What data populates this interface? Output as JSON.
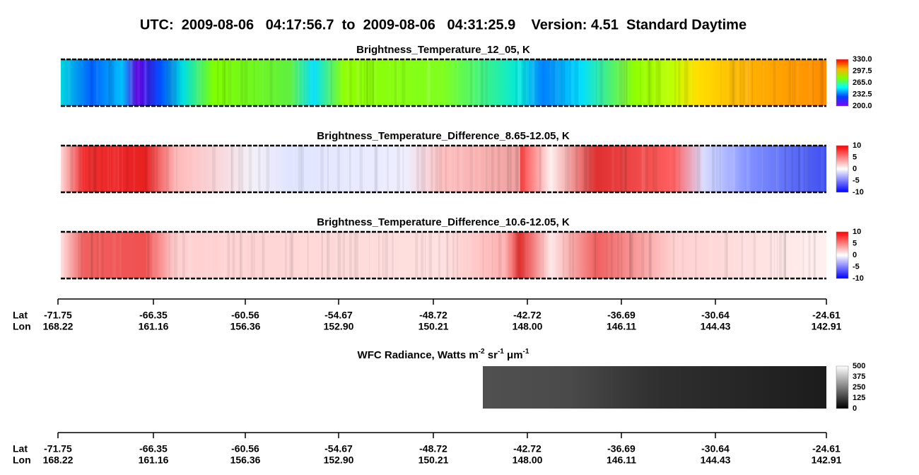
{
  "header": {
    "title": "UTC:  2009-08-06   04:17:56.7  to  2009-08-06   04:31:25.9    Version: 4.51  Standard Daytime"
  },
  "panels": [
    {
      "title": "Brightness_Temperature_12_05, K",
      "colorbar": [
        "330.0",
        "297.5",
        "265.0",
        "232.5",
        "200.0"
      ]
    },
    {
      "title": "Brightness_Temperature_Difference_8.65-12.05, K",
      "colorbar": [
        "10",
        "5",
        "0",
        "-5",
        "-10"
      ]
    },
    {
      "title": "Brightness_Temperature_Difference_10.6-12.05, K",
      "colorbar": [
        "10",
        "5",
        "0",
        "-5",
        "-10"
      ]
    }
  ],
  "axis": {
    "lat_label": "Lat",
    "lon_label": "Lon",
    "lat": [
      "-71.75",
      "-66.35",
      "-60.56",
      "-54.67",
      "-48.72",
      "-42.72",
      "-36.69",
      "-30.64",
      "-24.61"
    ],
    "lon": [
      "168.22",
      "161.16",
      "156.36",
      "152.90",
      "150.21",
      "148.00",
      "146.11",
      "144.43",
      "142.91"
    ]
  },
  "wfc": {
    "title_parts": [
      "WFC Radiance, Watts m",
      "-2",
      " sr",
      "-1",
      " μm",
      "-1"
    ],
    "colorbar": [
      "500",
      "375",
      "250",
      "125",
      "0"
    ]
  }
}
